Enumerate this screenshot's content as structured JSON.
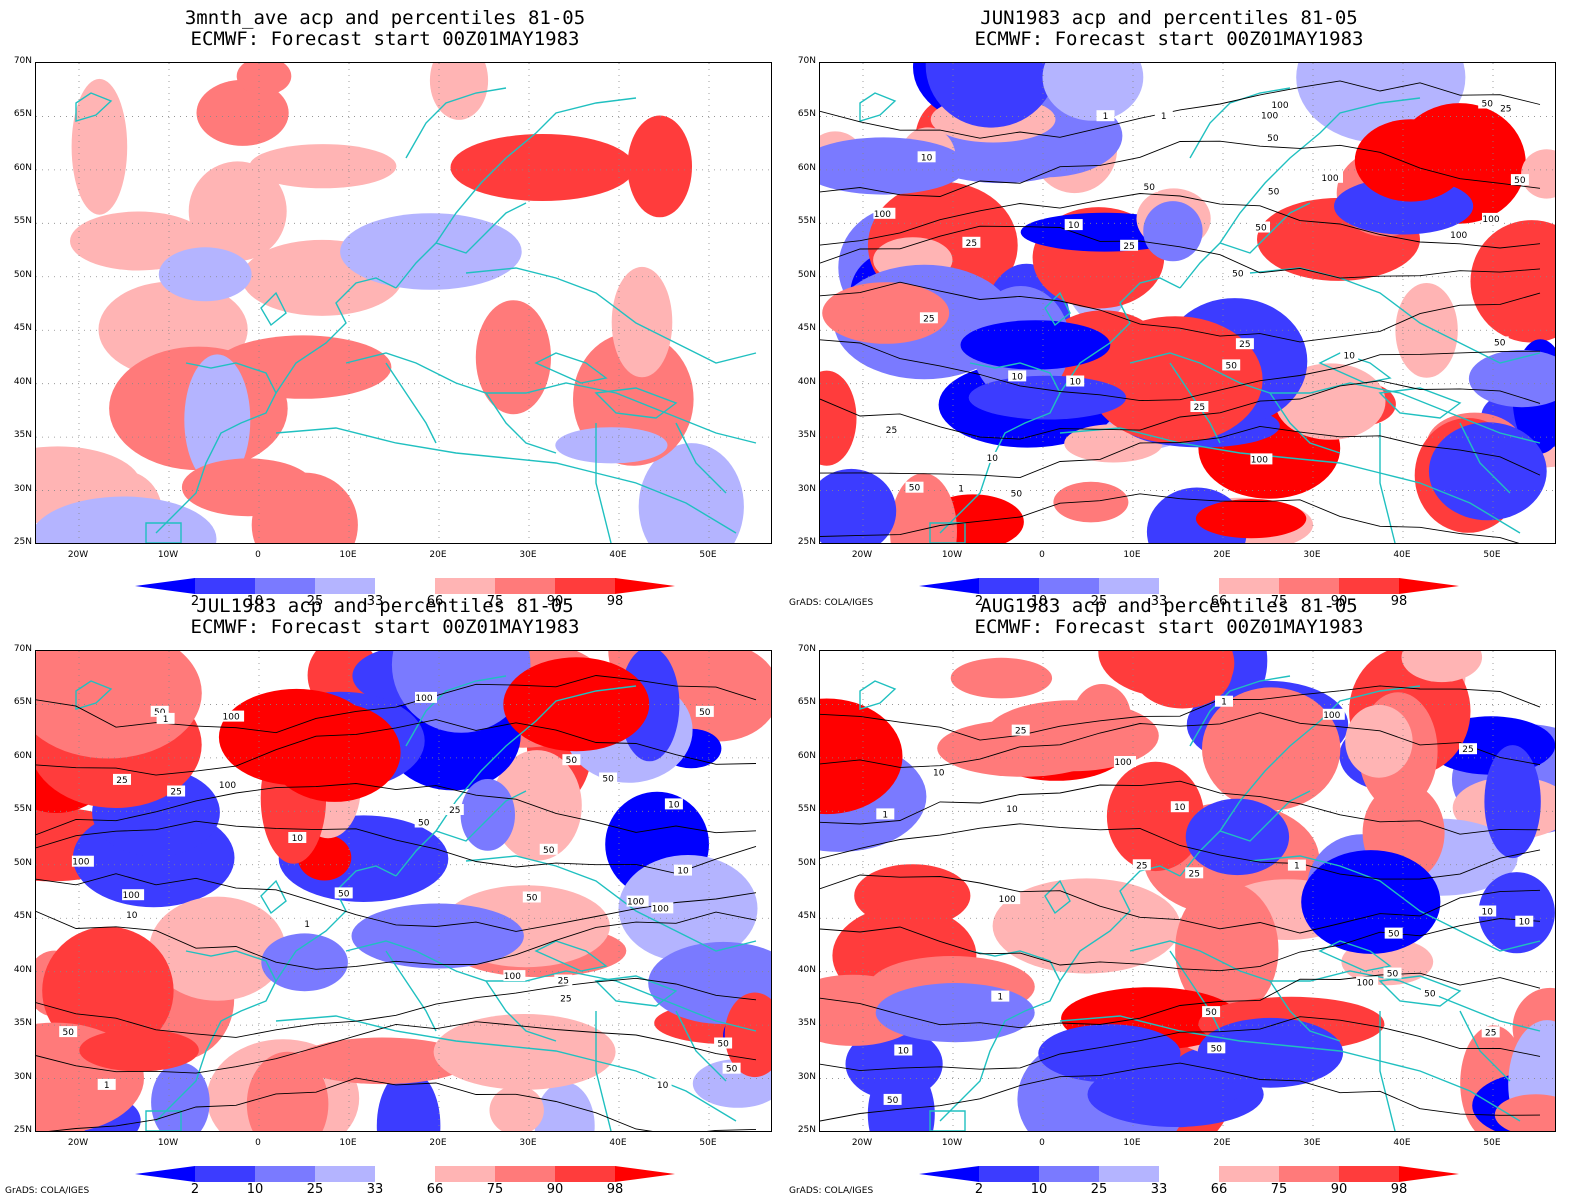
{
  "panels": [
    {
      "title_line1": "3mnth_ave acp and percentiles 81-05",
      "title_line2": "ECMWF: Forecast start 00Z01MAY1983",
      "credit": "",
      "contour_labels": []
    },
    {
      "title_line1": "JUN1983 acp and percentiles 81-05",
      "title_line2": "ECMWF: Forecast start 00Z01MAY1983",
      "credit": "GrADS: COLA/IGES",
      "contour_labels": [
        "50",
        "50",
        "100",
        "50",
        "100",
        "50",
        "50",
        "100",
        "50",
        "100",
        "100",
        "100",
        "25",
        "25",
        "25",
        "50",
        "100",
        "50",
        "50",
        "25",
        "10",
        "10",
        "10",
        "25",
        "10",
        "25",
        "10",
        "1",
        "1",
        "50",
        "50",
        "25",
        "10",
        "1"
      ]
    },
    {
      "title_line1": "JUL1983 acp and percentiles 81-05",
      "title_line2": "ECMWF: Forecast start 00Z01MAY1983",
      "credit": "GrADS: COLA/IGES",
      "contour_labels": [
        "50",
        "50",
        "100",
        "100",
        "50",
        "50",
        "50",
        "100",
        "50",
        "50",
        "100",
        "100",
        "100",
        "100",
        "25",
        "50",
        "10",
        "25",
        "50",
        "10",
        "25",
        "25",
        "50",
        "100",
        "10",
        "1",
        "50",
        "25",
        "10",
        "1",
        "1",
        "10"
      ]
    },
    {
      "title_line1": "AUG1983 acp and percentiles 81-05",
      "title_line2": "ECMWF: Forecast start 00Z01MAY1983",
      "credit": "GrADS: COLA/IGES",
      "contour_labels": [
        "100",
        "50",
        "50",
        "100",
        "100",
        "50",
        "25",
        "50",
        "100",
        "25",
        "50",
        "10",
        "25",
        "10",
        "25",
        "50",
        "10",
        "10",
        "1",
        "10",
        "1",
        "1",
        "25",
        "10",
        "1"
      ]
    }
  ],
  "map": {
    "lat_labels": [
      "70N",
      "65N",
      "60N",
      "55N",
      "50N",
      "45N",
      "40N",
      "35N",
      "30N",
      "25N"
    ],
    "lon_labels": [
      "20W",
      "10W",
      "0",
      "10E",
      "20E",
      "30E",
      "40E",
      "50E"
    ]
  },
  "colorbar": {
    "labels": [
      "2",
      "10",
      "25",
      "33",
      "66",
      "75",
      "90",
      "98"
    ],
    "colors": [
      "#0000ff",
      "#3c3cff",
      "#7a7aff",
      "#b4b4ff",
      "#ffffff",
      "#ffb4b4",
      "#ff7a7a",
      "#ff3c3c",
      "#ff0000"
    ]
  },
  "coastline_color": "#20c0c0"
}
